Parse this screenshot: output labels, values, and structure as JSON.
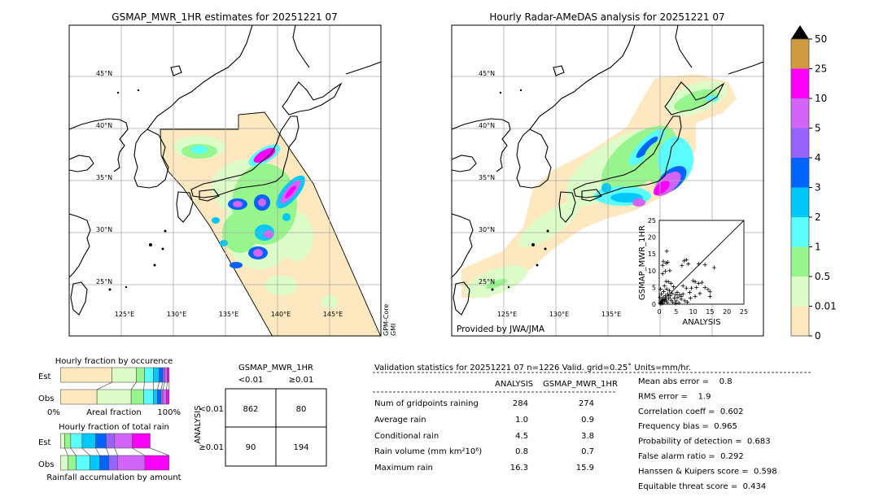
{
  "left_map": {
    "title": "GSMAP_MWR_1HR estimates for 20251221 07",
    "sensor_label": [
      "GPM-Core",
      "GMI"
    ]
  },
  "right_map": {
    "title": "Hourly Radar-AMeDAS analysis for 20251221 07",
    "credit": "Provided by JWA/JMA"
  },
  "map_axes": {
    "lat_labels": [
      "45°N",
      "40°N",
      "35°N",
      "30°N",
      "25°N"
    ],
    "lon_labels": [
      "125°E",
      "130°E",
      "135°E",
      "140°E",
      "145°E"
    ]
  },
  "colorbar": {
    "labels": [
      "50",
      "25",
      "10",
      "5",
      "4",
      "3",
      "2",
      "1",
      "0.5",
      "0.01",
      "0"
    ],
    "colors_bottom_to_top": [
      "#fee8c0",
      "#dcfcc8",
      "#96f58c",
      "#5afcfc",
      "#00c8fa",
      "#0064fa",
      "#9664fa",
      "#d264fa",
      "#fa00fa",
      "#cf9a40"
    ],
    "over_color": "#000000"
  },
  "chart_data": [
    {
      "type": "scatter",
      "xlabel": "ANALYSIS",
      "ylabel": "GSMAP_MWR_1HR",
      "xlim": [
        0,
        25
      ],
      "ylim": [
        0,
        25
      ],
      "ticks": [
        "0",
        "5",
        "10",
        "15",
        "20",
        "25"
      ],
      "diagonal": true,
      "points": [
        [
          2.2,
          15.8
        ],
        [
          1.2,
          12.8
        ],
        [
          2.0,
          12.3
        ],
        [
          1.0,
          11.6
        ],
        [
          2.5,
          12.5
        ],
        [
          7.3,
          12.9
        ],
        [
          8.0,
          13.2
        ],
        [
          6.7,
          11.5
        ],
        [
          8.6,
          12.0
        ],
        [
          11.7,
          12.0
        ],
        [
          13.5,
          11.8
        ],
        [
          16.2,
          10.9
        ],
        [
          1.8,
          9.8
        ],
        [
          1.0,
          9.1
        ],
        [
          3.1,
          10.0
        ],
        [
          10.0,
          7.0
        ],
        [
          10.6,
          6.7
        ],
        [
          11.6,
          6.2
        ],
        [
          12.6,
          6.5
        ],
        [
          9.5,
          4.8
        ],
        [
          11.0,
          5.0
        ],
        [
          13.5,
          5.0
        ],
        [
          14.4,
          4.4
        ],
        [
          15.0,
          3.7
        ],
        [
          15.0,
          2.3
        ],
        [
          12.0,
          3.2
        ],
        [
          10.6,
          2.3
        ],
        [
          9.0,
          3.5
        ],
        [
          8.0,
          4.8
        ],
        [
          7.0,
          5.5
        ],
        [
          6.5,
          2.3
        ],
        [
          5.3,
          3.5
        ],
        [
          4.8,
          2.8
        ],
        [
          4.2,
          5.2
        ],
        [
          3.5,
          6.2
        ],
        [
          2.7,
          6.7
        ],
        [
          2.0,
          6.8
        ],
        [
          1.5,
          5.5
        ],
        [
          3.0,
          4.0
        ],
        [
          2.5,
          3.0
        ],
        [
          1.8,
          2.5
        ],
        [
          1.2,
          2.0
        ],
        [
          0.8,
          1.5
        ],
        [
          0.5,
          1.0
        ],
        [
          0.3,
          0.5
        ],
        [
          1.0,
          0.3
        ],
        [
          1.5,
          0.8
        ],
        [
          2.0,
          1.2
        ],
        [
          2.8,
          1.8
        ],
        [
          3.5,
          1.2
        ],
        [
          4.0,
          0.6
        ],
        [
          5.0,
          1.0
        ],
        [
          5.8,
          0.4
        ],
        [
          6.5,
          1.5
        ],
        [
          7.5,
          1.0
        ],
        [
          8.3,
          0.6
        ],
        [
          3.2,
          2.5
        ],
        [
          4.5,
          1.8
        ],
        [
          0.6,
          3.0
        ],
        [
          0.4,
          4.5
        ],
        [
          1.3,
          3.8
        ],
        [
          2.2,
          4.5
        ],
        [
          3.8,
          3.2
        ],
        [
          6.0,
          2.8
        ],
        [
          0.2,
          2.0
        ],
        [
          0.9,
          0.8
        ],
        [
          1.7,
          1.5
        ],
        [
          2.4,
          0.5
        ],
        [
          0.3,
          0.1
        ],
        [
          0.7,
          0.2
        ],
        [
          1.1,
          1.1
        ],
        [
          4.8,
          0.2
        ],
        [
          5.5,
          2.0
        ],
        [
          7.0,
          3.0
        ],
        [
          9.2,
          1.8
        ]
      ]
    },
    {
      "type": "bar",
      "title": "Hourly fraction by occurence",
      "xlabel": "Areal fraction",
      "x_tick_labels": [
        "0%",
        "100%"
      ],
      "categories": [
        "Est",
        "Obs"
      ],
      "stacked": true,
      "series": [
        {
          "values": [
            0.4725,
            0.335
          ],
          "color": "#fee8c0"
        },
        {
          "values": [
            0.225,
            0.315
          ],
          "color": "#dcfcc8"
        },
        {
          "values": [
            0.075,
            0.115
          ],
          "color": "#96f58c"
        },
        {
          "values": [
            0.0825,
            0.09
          ],
          "color": "#5afcfc"
        },
        {
          "values": [
            0.0525,
            0.0375
          ],
          "color": "#00c8fa"
        },
        {
          "values": [
            0.035,
            0.0325
          ],
          "color": "#0064fa"
        },
        {
          "values": [
            0.0175,
            0.0175
          ],
          "color": "#9664fa"
        },
        {
          "values": [
            0.0225,
            0.0325
          ],
          "color": "#d264fa"
        },
        {
          "values": [
            0.0175,
            0.025
          ],
          "color": "#fa00fa"
        }
      ]
    },
    {
      "type": "bar",
      "title": "Hourly fraction of total rain",
      "xlabel": "Rainfall accumulation by amount",
      "categories": [
        "Est",
        "Obs"
      ],
      "stacked": true,
      "series": [
        {
          "values": [
            0.0375,
            0.0675
          ],
          "color": "#dcfcc8"
        },
        {
          "values": [
            0.055,
            0.075
          ],
          "color": "#96f58c"
        },
        {
          "values": [
            0.105,
            0.1275
          ],
          "color": "#5afcfc"
        },
        {
          "values": [
            0.125,
            0.09
          ],
          "color": "#00c8fa"
        },
        {
          "values": [
            0.0975,
            0.085
          ],
          "color": "#0064fa"
        },
        {
          "values": [
            0.0775,
            0.08
          ],
          "color": "#9664fa"
        },
        {
          "values": [
            0.1625,
            0.25
          ],
          "color": "#d264fa"
        },
        {
          "values": [
            0.165,
            0.225
          ],
          "color": "#fa00fa"
        }
      ]
    }
  ],
  "contingency": {
    "col_title": "GSMAP_MWR_1HR",
    "col_labels": [
      "<0.01",
      "≥0.01"
    ],
    "row_title": "ANALYSIS",
    "row_labels": [
      "<0.01",
      "≥0.01"
    ],
    "cells": [
      [
        "862",
        "80"
      ],
      [
        "90",
        "194"
      ]
    ]
  },
  "stats": {
    "header": "Validation statistics for 20251221 07  n=1226 Valid. grid=0.25˚ Units=mm/hr.",
    "col_headers": [
      "ANALYSIS",
      "GSMAP_MWR_1HR"
    ],
    "rows": [
      {
        "label": "Num of gridpoints raining",
        "analysis": "284",
        "gsmap": "274"
      },
      {
        "label": "Average rain",
        "analysis": "1.0",
        "gsmap": "0.9"
      },
      {
        "label": "Conditional rain",
        "analysis": "4.5",
        "gsmap": "3.8"
      },
      {
        "label": "Rain volume (mm km²10⁶)",
        "analysis": "0.8",
        "gsmap": "0.7"
      },
      {
        "label": "Maximum rain",
        "analysis": "16.3",
        "gsmap": "15.9"
      }
    ],
    "scores": [
      "Mean abs error =    0.8",
      "RMS error =    1.9",
      "Correlation coeff =  0.602",
      "Frequency bias =  0.965",
      "Probability of detection =  0.683",
      "False alarm ratio =  0.292",
      "Hanssen & Kuipers score =  0.598",
      "Equitable threat score =  0.434"
    ]
  }
}
